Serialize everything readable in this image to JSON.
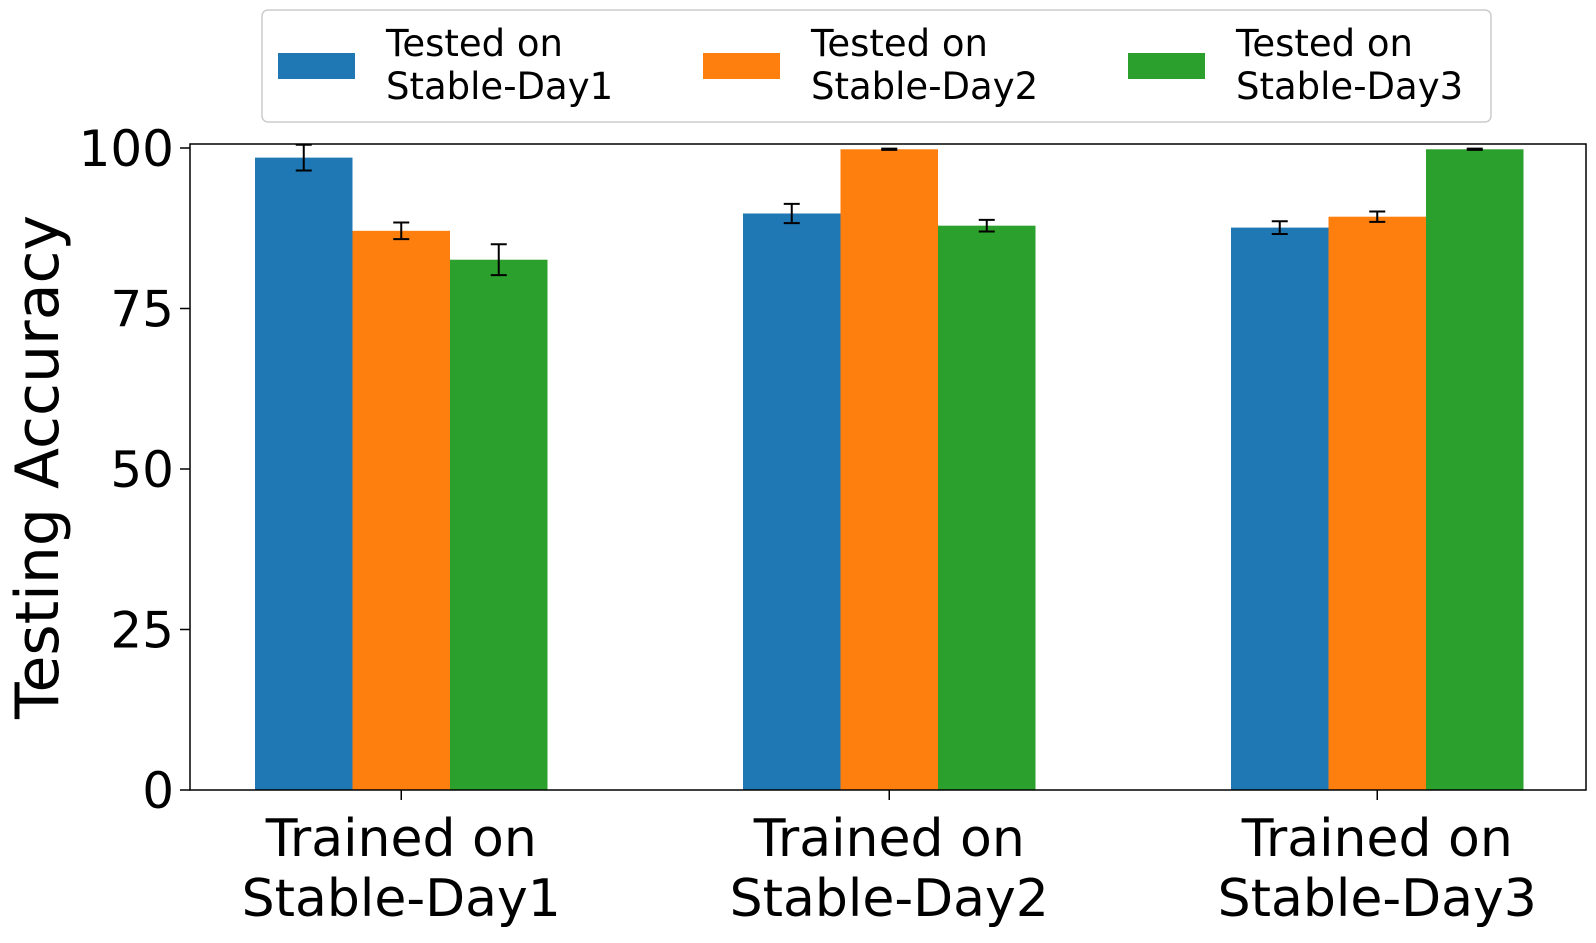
{
  "chart_data": {
    "type": "bar",
    "title": "",
    "xlabel": "",
    "ylabel": "Testing Accuracy",
    "ylim": [
      0,
      100
    ],
    "yticks": [
      0,
      25,
      50,
      75,
      100
    ],
    "grid": false,
    "legend_position": "top-center",
    "categories": [
      [
        "Trained on",
        "Stable-Day1"
      ],
      [
        "Trained on",
        "Stable-Day2"
      ],
      [
        "Trained on",
        "Stable-Day3"
      ]
    ],
    "series": [
      {
        "name": [
          "Tested on",
          "Stable-Day1"
        ],
        "color": "#1f77b4",
        "values": [
          98.5,
          89.8,
          87.6
        ],
        "errors": [
          2.0,
          1.5,
          1.0
        ]
      },
      {
        "name": [
          "Tested on",
          "Stable-Day2"
        ],
        "color": "#ff7f0e",
        "values": [
          87.1,
          99.8,
          89.3
        ],
        "errors": [
          1.3,
          0.1,
          0.8
        ]
      },
      {
        "name": [
          "Tested on",
          "Stable-Day3"
        ],
        "color": "#2ca02c",
        "values": [
          82.6,
          87.9,
          99.8
        ],
        "errors": [
          2.4,
          0.9,
          0.1
        ]
      }
    ]
  }
}
